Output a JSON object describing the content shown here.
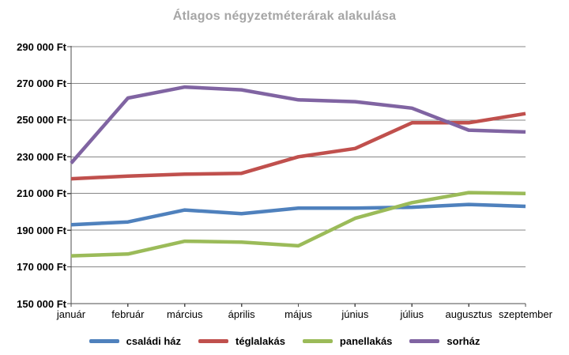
{
  "chart_data": {
    "type": "line",
    "title": "Átlagos négyzetméterárak alakulása",
    "title_color": "#A6A6A6",
    "categories": [
      "január",
      "február",
      "március",
      "április",
      "május",
      "június",
      "július",
      "augusztus",
      "szeptember"
    ],
    "series": [
      {
        "name": "családi ház",
        "color": "#4F81BD",
        "values": [
          193000,
          194500,
          201000,
          199000,
          202000,
          202000,
          202500,
          204000,
          203000
        ]
      },
      {
        "name": "téglalakás",
        "color": "#C0504D",
        "values": [
          218000,
          219500,
          220500,
          221000,
          230000,
          234500,
          248500,
          248500,
          253500
        ]
      },
      {
        "name": "panellakás",
        "color": "#9BBB59",
        "values": [
          176000,
          177000,
          184000,
          183500,
          181500,
          196500,
          205000,
          210500,
          210000
        ]
      },
      {
        "name": "sorház",
        "color": "#8064A2",
        "values": [
          226500,
          262000,
          268000,
          266500,
          261000,
          260000,
          256500,
          244500,
          243500
        ]
      }
    ],
    "y_axis": {
      "min": 150000,
      "max": 290000,
      "step": 20000,
      "tick_labels_top_to_bottom": [
        "290 000 Ft",
        "270 000 Ft",
        "250 000 Ft",
        "230 000 Ft",
        "210 000 Ft",
        "190 000 Ft",
        "170 000 Ft",
        "150 000 Ft"
      ],
      "unit": "Ft"
    },
    "xlabel": "",
    "ylabel": "",
    "legend_position": "bottom",
    "grid": "horizontal",
    "gridline_color": "#878787",
    "axis_color": "#4d4d4d",
    "line_width": 4.5
  }
}
